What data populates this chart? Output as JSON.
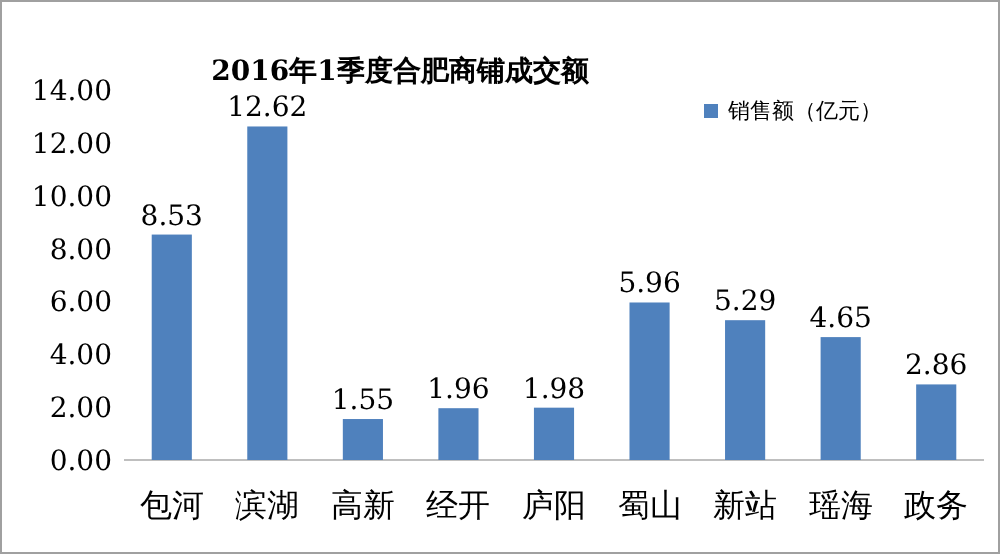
{
  "chart_data": {
    "type": "bar",
    "title": "2016年1季度合肥商铺成交额",
    "categories": [
      "包河",
      "滨湖",
      "高新",
      "经开",
      "庐阳",
      "蜀山",
      "新站",
      "瑶海",
      "政务"
    ],
    "series": [
      {
        "name": "销售额（亿元）",
        "color": "#4f81bd",
        "values": [
          8.53,
          12.62,
          1.55,
          1.96,
          1.98,
          5.96,
          5.29,
          4.65,
          2.86
        ]
      }
    ],
    "ylim": [
      0,
      14
    ],
    "yticks": [
      {
        "value": 0,
        "label": "0.00"
      },
      {
        "value": 2,
        "label": "2.00"
      },
      {
        "value": 4,
        "label": "4.00"
      },
      {
        "value": 6,
        "label": "6.00"
      },
      {
        "value": 8,
        "label": "8.00"
      },
      {
        "value": 10,
        "label": "10.00"
      },
      {
        "value": 12,
        "label": "12.00"
      },
      {
        "value": 14,
        "label": "14.00"
      }
    ],
    "data_labels": true,
    "legend": "top right"
  }
}
